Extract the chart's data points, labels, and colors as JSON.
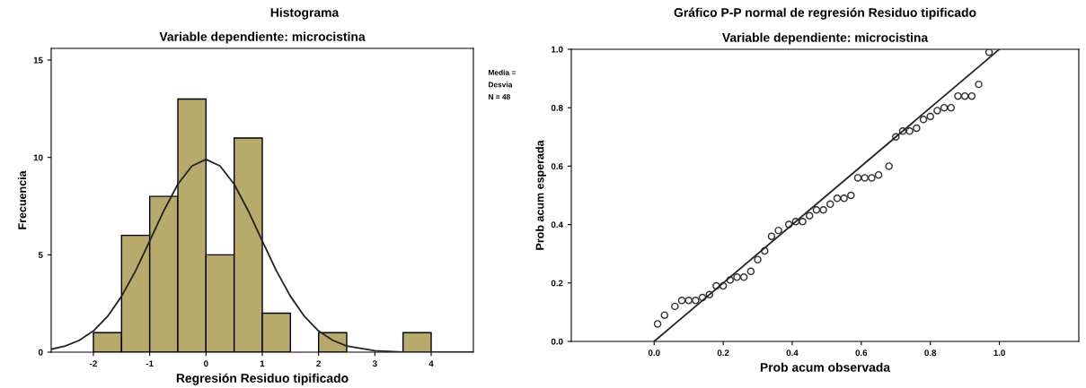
{
  "chart_data": [
    {
      "type": "histogram",
      "title": "Histograma",
      "subtitle": "Variable dependiente: microcistina",
      "xlabel": "Regresión Residuo tipificado",
      "ylabel": "Frecuencia",
      "bins": [
        -2,
        -1.5,
        -1,
        -0.5,
        0,
        0.5,
        1,
        1.5,
        2,
        2.5,
        3,
        3.5,
        4
      ],
      "values": [
        1,
        6,
        8,
        13,
        5,
        11,
        2,
        0,
        1,
        0,
        0,
        1
      ],
      "color": "#b8a96c",
      "series": [
        {
          "type": "line",
          "color": "#222222",
          "x": [
            -2.75,
            -2.5,
            -2.25,
            -2,
            -1.75,
            -1.5,
            -1.25,
            -1,
            -0.75,
            -0.5,
            -0.25,
            0,
            0.25,
            0.5,
            0.75,
            1,
            1.25,
            1.5,
            1.75,
            2,
            2.25,
            2.5,
            3,
            3.5,
            4,
            4.75
          ],
          "values": [
            0.15,
            0.32,
            0.61,
            1.09,
            1.83,
            2.87,
            4.18,
            5.71,
            7.26,
            8.63,
            9.56,
            9.9,
            9.56,
            8.63,
            7.26,
            5.71,
            4.18,
            2.87,
            1.83,
            1.09,
            0.61,
            0.32,
            0.07,
            0.01,
            0,
            0
          ]
        }
      ],
      "xlim": [
        -2.75,
        4.75
      ],
      "ylim": [
        0,
        15.6
      ],
      "xticks": [
        -2,
        -1,
        0,
        1,
        2,
        3,
        4
      ],
      "yticks": [
        0,
        5,
        10,
        15
      ],
      "annotations": [
        "Media =",
        "Desvia",
        "N = 48"
      ],
      "grid": false,
      "legend": false
    },
    {
      "type": "scatter",
      "title": "Gráfico P-P normal de regresión Residuo tipificado",
      "subtitle": "Variable dependiente: microcistina",
      "xlabel": "Prob acum observada",
      "ylabel": "Prob acum esperada",
      "series": [
        {
          "type": "scatter",
          "color": "#333333",
          "marker": "circle",
          "x": [
            0.01,
            0.03,
            0.06,
            0.08,
            0.1,
            0.12,
            0.14,
            0.16,
            0.18,
            0.2,
            0.22,
            0.24,
            0.26,
            0.28,
            0.3,
            0.32,
            0.34,
            0.36,
            0.39,
            0.41,
            0.43,
            0.45,
            0.47,
            0.49,
            0.51,
            0.53,
            0.55,
            0.57,
            0.59,
            0.61,
            0.63,
            0.65,
            0.68,
            0.7,
            0.72,
            0.74,
            0.76,
            0.78,
            0.8,
            0.82,
            0.84,
            0.86,
            0.88,
            0.9,
            0.92,
            0.94,
            0.97
          ],
          "values": [
            0.06,
            0.09,
            0.12,
            0.14,
            0.14,
            0.14,
            0.15,
            0.16,
            0.19,
            0.19,
            0.21,
            0.22,
            0.22,
            0.24,
            0.28,
            0.31,
            0.36,
            0.38,
            0.4,
            0.41,
            0.41,
            0.43,
            0.45,
            0.45,
            0.47,
            0.49,
            0.49,
            0.5,
            0.56,
            0.56,
            0.56,
            0.57,
            0.6,
            0.7,
            0.72,
            0.72,
            0.73,
            0.76,
            0.77,
            0.79,
            0.8,
            0.8,
            0.84,
            0.84,
            0.84,
            0.88,
            0.99
          ]
        },
        {
          "type": "line",
          "color": "#222222",
          "x": [
            0,
            1
          ],
          "values": [
            0,
            1
          ]
        }
      ],
      "xlim": [
        -0.24,
        1.23
      ],
      "ylim": [
        0,
        1
      ],
      "xticks": [
        {
          "value": 0,
          "label": "0.0"
        },
        {
          "value": 0.2,
          "label": "0.2"
        },
        {
          "value": 0.4,
          "label": "0.4"
        },
        {
          "value": 0.6,
          "label": "0.6"
        },
        {
          "value": 0.8,
          "label": "0.8"
        },
        {
          "value": 1,
          "label": "1.0"
        }
      ],
      "yticks": [
        {
          "value": 0,
          "label": "0.0"
        },
        {
          "value": 0.2,
          "label": "0.2"
        },
        {
          "value": 0.4,
          "label": "0.4"
        },
        {
          "value": 0.6,
          "label": "0.6"
        },
        {
          "value": 0.8,
          "label": "0.8"
        },
        {
          "value": 1,
          "label": "1.0"
        }
      ],
      "grid": false,
      "legend": false
    }
  ]
}
